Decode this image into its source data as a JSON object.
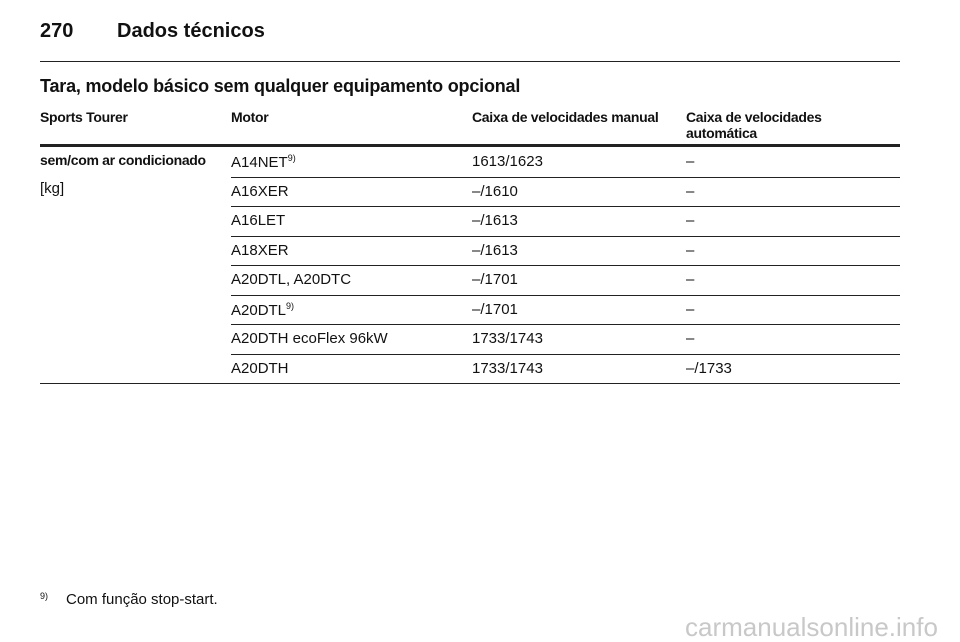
{
  "header": {
    "page_number": "270",
    "title": "Dados técnicos"
  },
  "section_title": "Tara, modelo básico sem qualquer equipamento opcional",
  "table": {
    "columns": [
      "Sports Tourer",
      "Motor",
      "Caixa de velocidades manual",
      "Caixa de velocidades automática"
    ],
    "label": "sem/com ar condicionado",
    "unit": "[kg]",
    "rows": [
      {
        "motor": "A14NET",
        "note": "9)",
        "manual": "1613/1623",
        "automatic": "–"
      },
      {
        "motor": "A16XER",
        "manual": "–/1610",
        "automatic": "–"
      },
      {
        "motor": "A16LET",
        "manual": "–/1613",
        "automatic": "–"
      },
      {
        "motor": "A18XER",
        "manual": "–/1613",
        "automatic": "–"
      },
      {
        "motor": "A20DTL, A20DTC",
        "manual": "–/1701",
        "automatic": "–"
      },
      {
        "motor": "A20DTL",
        "note": "9)",
        "manual": "–/1701",
        "automatic": "–"
      },
      {
        "motor": "A20DTH ecoFlex 96kW",
        "manual": "1733/1743",
        "automatic": "–"
      },
      {
        "motor": "A20DTH",
        "manual": "1733/1743",
        "automatic": "–/1733"
      }
    ]
  },
  "footnote": {
    "marker": "9)",
    "text": "Com função stop-start."
  },
  "watermark": "carmanualsonline.info"
}
